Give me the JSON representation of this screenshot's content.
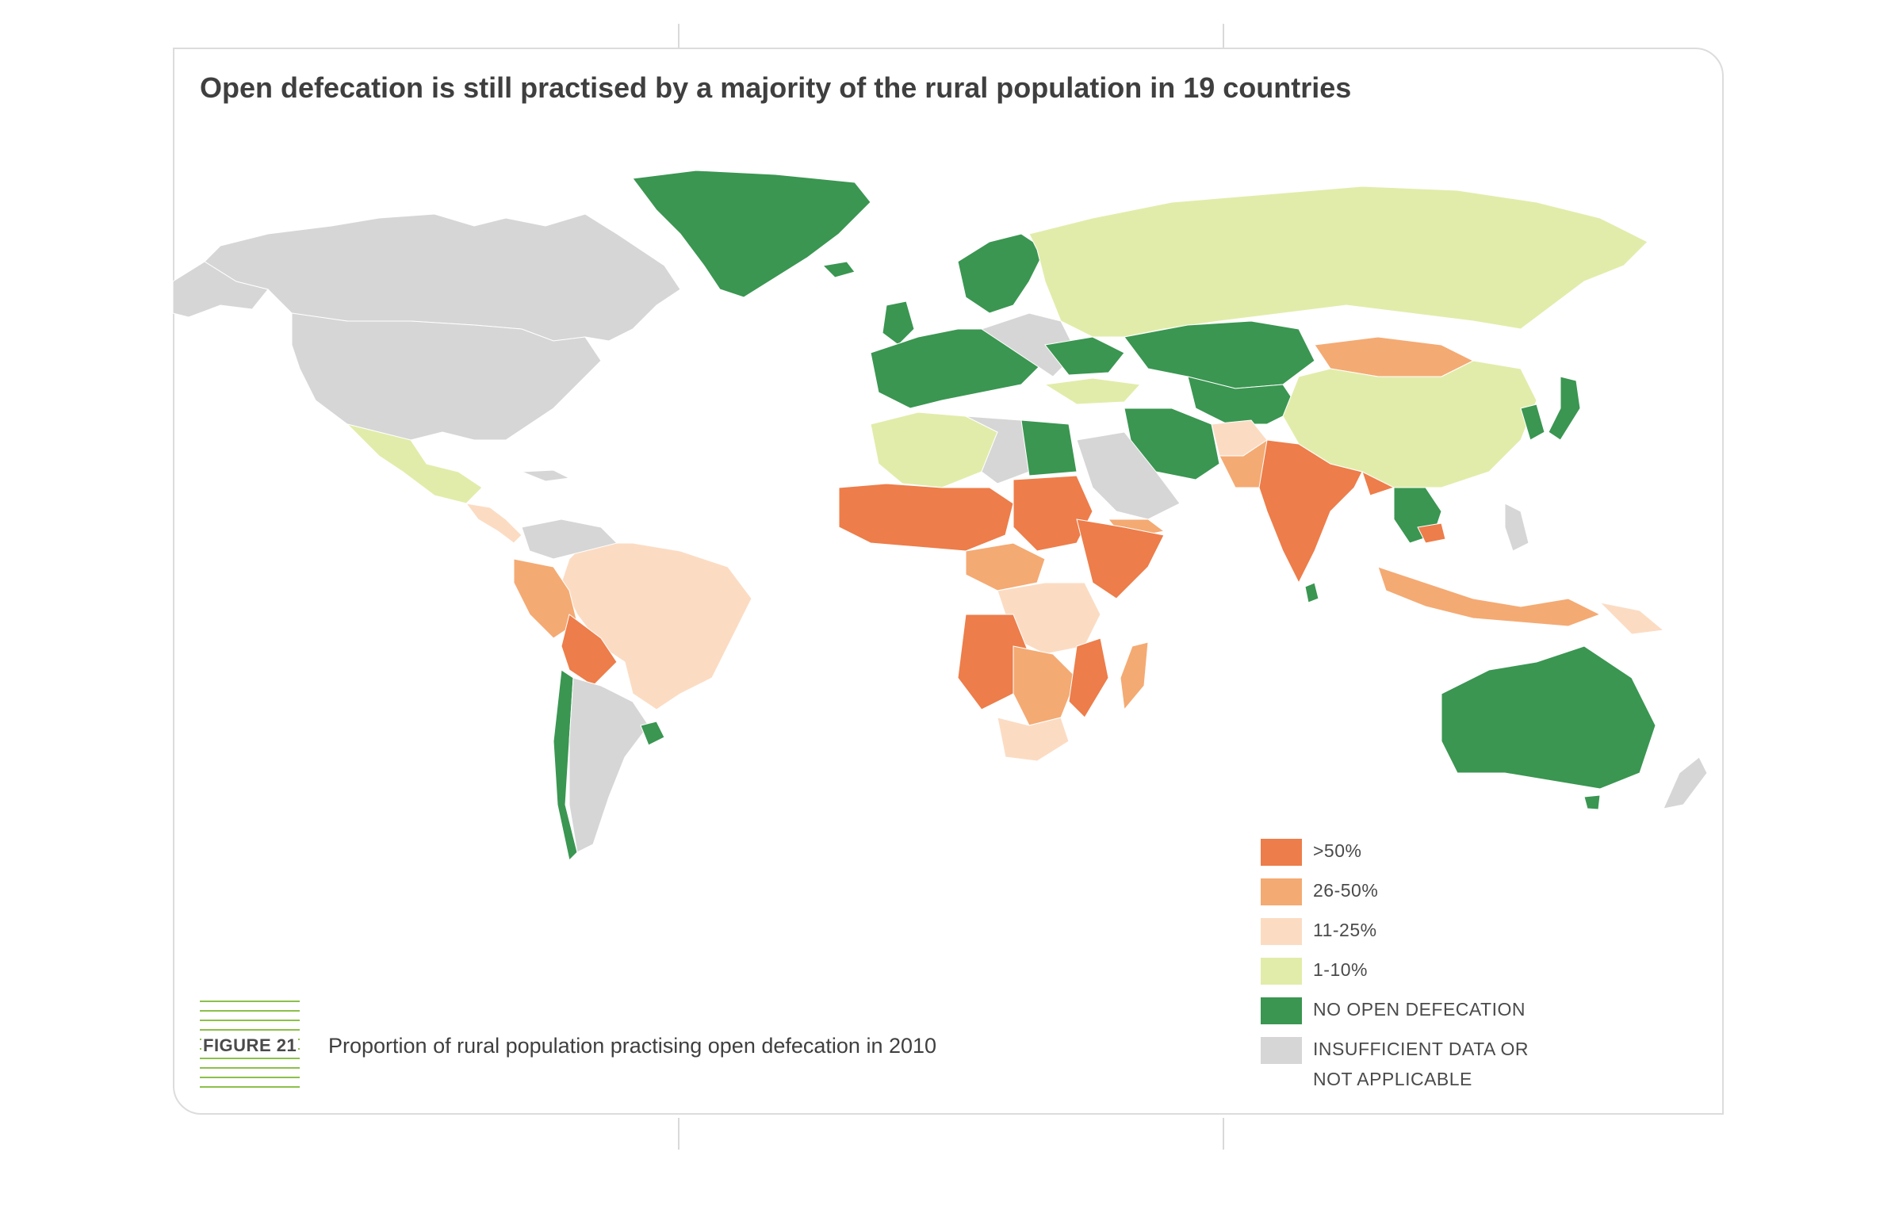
{
  "title": "Open defecation is still practised by a majority of the rural population in 19 countries",
  "figure": {
    "label": "FIGURE 21",
    "caption": "Proportion of rural population practising open defecation in 2010"
  },
  "legend": {
    "items": [
      {
        "label": ">50%",
        "color": "#ed7d4a"
      },
      {
        "label": "26-50%",
        "color": "#f4aa73"
      },
      {
        "label": "11-25%",
        "color": "#fbdcc3"
      },
      {
        "label": "1-10%",
        "color": "#e2ecaa"
      },
      {
        "label": "NO OPEN DEFECATION",
        "color": "#3a9651"
      },
      {
        "label": "INSUFFICIENT DATA OR",
        "label2": "NOT APPLICABLE",
        "color": "#d6d6d6"
      }
    ]
  },
  "map_regions": [
    {
      "name": "Greenland",
      "category": "NO OPEN DEFECATION"
    },
    {
      "name": "Canada",
      "category": "INSUFFICIENT DATA OR NOT APPLICABLE"
    },
    {
      "name": "United States",
      "category": "INSUFFICIENT DATA OR NOT APPLICABLE"
    },
    {
      "name": "Mexico",
      "category": "1-10%"
    },
    {
      "name": "Brazil",
      "category": "11-25%"
    },
    {
      "name": "Bolivia",
      "category": ">50%"
    },
    {
      "name": "Peru",
      "category": "26-50%"
    },
    {
      "name": "Chile",
      "category": "NO OPEN DEFECATION"
    },
    {
      "name": "Argentina",
      "category": "INSUFFICIENT DATA OR NOT APPLICABLE"
    },
    {
      "name": "Russia",
      "category": "1-10%"
    },
    {
      "name": "Kazakhstan",
      "category": "NO OPEN DEFECATION"
    },
    {
      "name": "Mongolia",
      "category": "26-50%"
    },
    {
      "name": "China",
      "category": "1-10%"
    },
    {
      "name": "India",
      "category": ">50%"
    },
    {
      "name": "Pakistan",
      "category": "26-50%"
    },
    {
      "name": "Iran",
      "category": "NO OPEN DEFECATION"
    },
    {
      "name": "Indonesia",
      "category": "26-50%"
    },
    {
      "name": "Australia",
      "category": "NO OPEN DEFECATION"
    },
    {
      "name": "Egypt",
      "category": "NO OPEN DEFECATION"
    },
    {
      "name": "Sudan",
      "category": ">50%"
    },
    {
      "name": "Ethiopia",
      "category": ">50%"
    },
    {
      "name": "Angola",
      "category": ">50%"
    },
    {
      "name": "Madagascar",
      "category": "26-50%"
    },
    {
      "name": "South Africa",
      "category": "11-25%"
    }
  ]
}
